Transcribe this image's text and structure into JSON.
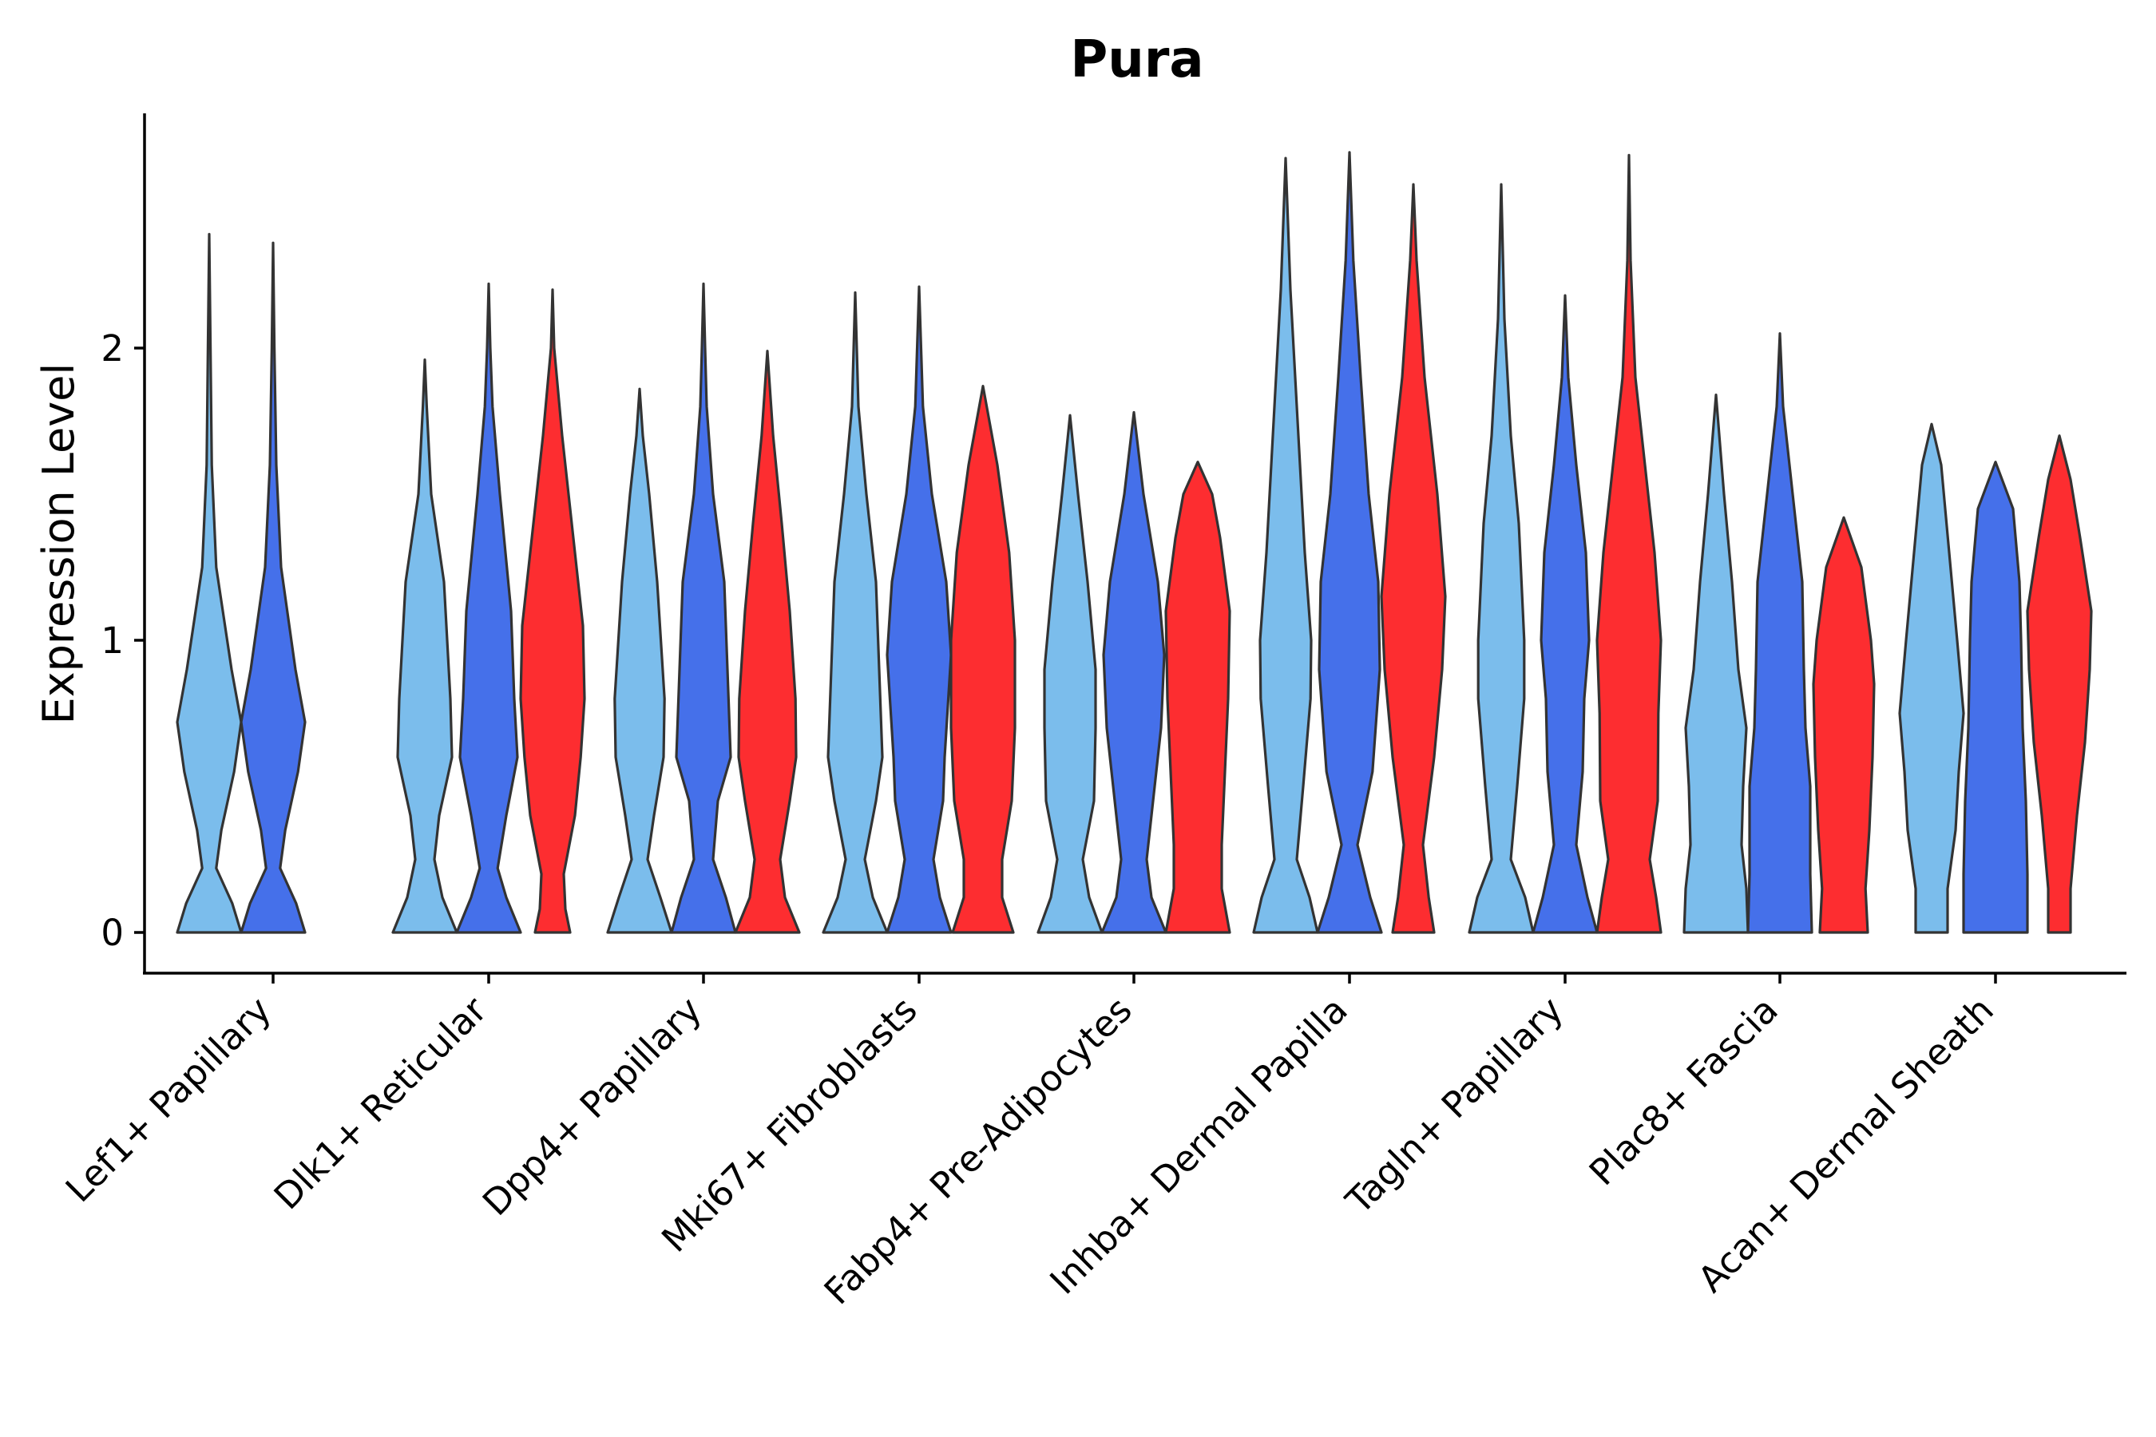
{
  "chart_data": {
    "type": "violin",
    "title": "Pura",
    "xlabel": "",
    "ylabel": "Expression Level",
    "ylim": [
      -0.13,
      2.82
    ],
    "yticks": [
      0,
      1,
      2
    ],
    "grid": false,
    "legend": "none",
    "group_colors": [
      "#7BBDEC",
      "#4570EA",
      "#FD2D30"
    ],
    "categories": [
      "Lef1+ Papillary",
      "Dlk1+ Reticular",
      "Dpp4+ Papillary",
      "Mki67+ Fibroblasts",
      "Fabp4+ Pre-Adipocytes",
      "Inhba+ Dermal Papilla",
      "Tagln+ Papillary",
      "Plac8+ Fascia",
      "Acan+ Dermal Sheath"
    ],
    "violins": [
      {
        "category": "Lef1+ Papillary",
        "group": 0,
        "max": 2.39,
        "profile": [
          [
            0,
            1.0
          ],
          [
            0.1,
            0.72
          ],
          [
            0.22,
            0.22
          ],
          [
            0.35,
            0.38
          ],
          [
            0.55,
            0.78
          ],
          [
            0.72,
            1.0
          ],
          [
            0.9,
            0.7
          ],
          [
            1.25,
            0.22
          ],
          [
            1.6,
            0.08
          ],
          [
            2.0,
            0.04
          ],
          [
            2.39,
            0.0
          ]
        ]
      },
      {
        "category": "Lef1+ Papillary",
        "group": 1,
        "max": 2.36,
        "profile": [
          [
            0,
            1.0
          ],
          [
            0.1,
            0.72
          ],
          [
            0.22,
            0.22
          ],
          [
            0.35,
            0.38
          ],
          [
            0.55,
            0.78
          ],
          [
            0.72,
            1.0
          ],
          [
            0.9,
            0.7
          ],
          [
            1.25,
            0.25
          ],
          [
            1.6,
            0.1
          ],
          [
            2.0,
            0.04
          ],
          [
            2.36,
            0.0
          ]
        ]
      },
      {
        "category": "Dlk1+ Reticular",
        "group": 0,
        "max": 1.96,
        "profile": [
          [
            0,
            1.0
          ],
          [
            0.12,
            0.55
          ],
          [
            0.25,
            0.3
          ],
          [
            0.4,
            0.45
          ],
          [
            0.6,
            0.85
          ],
          [
            0.8,
            0.8
          ],
          [
            1.2,
            0.6
          ],
          [
            1.5,
            0.2
          ],
          [
            1.8,
            0.06
          ],
          [
            1.96,
            0.0
          ]
        ]
      },
      {
        "category": "Dlk1+ Reticular",
        "group": 1,
        "max": 2.22,
        "profile": [
          [
            0,
            1.0
          ],
          [
            0.12,
            0.55
          ],
          [
            0.22,
            0.28
          ],
          [
            0.4,
            0.55
          ],
          [
            0.6,
            0.9
          ],
          [
            0.8,
            0.8
          ],
          [
            1.1,
            0.7
          ],
          [
            1.5,
            0.35
          ],
          [
            1.8,
            0.12
          ],
          [
            2.0,
            0.05
          ],
          [
            2.22,
            0.0
          ]
        ]
      },
      {
        "category": "Dlk1+ Reticular",
        "group": 2,
        "max": 2.2,
        "profile": [
          [
            0,
            0.55
          ],
          [
            0.08,
            0.4
          ],
          [
            0.2,
            0.35
          ],
          [
            0.4,
            0.7
          ],
          [
            0.6,
            0.88
          ],
          [
            0.8,
            1.0
          ],
          [
            1.05,
            0.95
          ],
          [
            1.35,
            0.65
          ],
          [
            1.7,
            0.3
          ],
          [
            2.0,
            0.05
          ],
          [
            2.2,
            0.0
          ]
        ]
      },
      {
        "category": "Dpp4+ Papillary",
        "group": 0,
        "max": 1.86,
        "profile": [
          [
            0,
            1.0
          ],
          [
            0.12,
            0.65
          ],
          [
            0.25,
            0.25
          ],
          [
            0.4,
            0.45
          ],
          [
            0.6,
            0.75
          ],
          [
            0.8,
            0.78
          ],
          [
            1.2,
            0.55
          ],
          [
            1.5,
            0.3
          ],
          [
            1.7,
            0.1
          ],
          [
            1.86,
            0.0
          ]
        ]
      },
      {
        "category": "Dpp4+ Papillary",
        "group": 1,
        "max": 2.22,
        "profile": [
          [
            0,
            1.0
          ],
          [
            0.12,
            0.7
          ],
          [
            0.25,
            0.3
          ],
          [
            0.45,
            0.45
          ],
          [
            0.6,
            0.85
          ],
          [
            0.9,
            0.75
          ],
          [
            1.2,
            0.65
          ],
          [
            1.5,
            0.3
          ],
          [
            1.8,
            0.1
          ],
          [
            2.0,
            0.05
          ],
          [
            2.22,
            0.0
          ]
        ]
      },
      {
        "category": "Dpp4+ Papillary",
        "group": 2,
        "max": 1.99,
        "profile": [
          [
            0,
            1.0
          ],
          [
            0.12,
            0.55
          ],
          [
            0.25,
            0.4
          ],
          [
            0.45,
            0.7
          ],
          [
            0.6,
            0.9
          ],
          [
            0.8,
            0.88
          ],
          [
            1.1,
            0.7
          ],
          [
            1.4,
            0.45
          ],
          [
            1.7,
            0.18
          ],
          [
            1.99,
            0.0
          ]
        ]
      },
      {
        "category": "Mki67+ Fibroblasts",
        "group": 0,
        "max": 2.19,
        "profile": [
          [
            0,
            1.0
          ],
          [
            0.12,
            0.55
          ],
          [
            0.25,
            0.3
          ],
          [
            0.45,
            0.65
          ],
          [
            0.6,
            0.85
          ],
          [
            0.9,
            0.75
          ],
          [
            1.2,
            0.65
          ],
          [
            1.5,
            0.35
          ],
          [
            1.8,
            0.1
          ],
          [
            2.19,
            0.0
          ]
        ]
      },
      {
        "category": "Mki67+ Fibroblasts",
        "group": 1,
        "max": 2.21,
        "profile": [
          [
            0,
            1.0
          ],
          [
            0.12,
            0.65
          ],
          [
            0.25,
            0.45
          ],
          [
            0.45,
            0.75
          ],
          [
            0.6,
            0.8
          ],
          [
            0.95,
            1.0
          ],
          [
            1.2,
            0.85
          ],
          [
            1.5,
            0.4
          ],
          [
            1.8,
            0.12
          ],
          [
            2.21,
            0.0
          ]
        ]
      },
      {
        "category": "Mki67+ Fibroblasts",
        "group": 2,
        "max": 1.87,
        "profile": [
          [
            0,
            0.95
          ],
          [
            0.12,
            0.6
          ],
          [
            0.25,
            0.6
          ],
          [
            0.45,
            0.9
          ],
          [
            0.7,
            1.0
          ],
          [
            1.0,
            1.0
          ],
          [
            1.3,
            0.82
          ],
          [
            1.6,
            0.45
          ],
          [
            1.87,
            0.0
          ]
        ]
      },
      {
        "category": "Fabp4+ Pre-Adipocytes",
        "group": 0,
        "max": 1.77,
        "profile": [
          [
            0,
            1.0
          ],
          [
            0.12,
            0.6
          ],
          [
            0.25,
            0.4
          ],
          [
            0.45,
            0.75
          ],
          [
            0.7,
            0.8
          ],
          [
            0.9,
            0.8
          ],
          [
            1.2,
            0.55
          ],
          [
            1.5,
            0.25
          ],
          [
            1.77,
            0.0
          ]
        ]
      },
      {
        "category": "Fabp4+ Pre-Adipocytes",
        "group": 1,
        "max": 1.78,
        "profile": [
          [
            0,
            1.0
          ],
          [
            0.12,
            0.55
          ],
          [
            0.25,
            0.4
          ],
          [
            0.45,
            0.6
          ],
          [
            0.7,
            0.85
          ],
          [
            0.95,
            0.95
          ],
          [
            1.2,
            0.75
          ],
          [
            1.5,
            0.3
          ],
          [
            1.78,
            0.0
          ]
        ]
      },
      {
        "category": "Fabp4+ Pre-Adipocytes",
        "group": 2,
        "max": 1.61,
        "profile": [
          [
            0,
            1.0
          ],
          [
            0.15,
            0.75
          ],
          [
            0.3,
            0.75
          ],
          [
            0.55,
            0.85
          ],
          [
            0.8,
            0.95
          ],
          [
            1.1,
            1.0
          ],
          [
            1.35,
            0.7
          ],
          [
            1.5,
            0.45
          ],
          [
            1.61,
            0.0
          ]
        ]
      },
      {
        "category": "Inhba+ Dermal Papilla",
        "group": 0,
        "max": 2.65,
        "profile": [
          [
            0,
            1.0
          ],
          [
            0.12,
            0.75
          ],
          [
            0.25,
            0.35
          ],
          [
            0.5,
            0.55
          ],
          [
            0.8,
            0.78
          ],
          [
            1.0,
            0.8
          ],
          [
            1.3,
            0.6
          ],
          [
            1.8,
            0.35
          ],
          [
            2.2,
            0.15
          ],
          [
            2.65,
            0.0
          ]
        ]
      },
      {
        "category": "Inhba+ Dermal Papilla",
        "group": 1,
        "max": 2.67,
        "profile": [
          [
            0,
            1.0
          ],
          [
            0.12,
            0.65
          ],
          [
            0.3,
            0.25
          ],
          [
            0.55,
            0.72
          ],
          [
            0.9,
            0.95
          ],
          [
            1.2,
            0.9
          ],
          [
            1.5,
            0.6
          ],
          [
            1.9,
            0.35
          ],
          [
            2.3,
            0.12
          ],
          [
            2.67,
            0.0
          ]
        ]
      },
      {
        "category": "Inhba+ Dermal Papilla",
        "group": 2,
        "max": 2.56,
        "profile": [
          [
            0,
            0.65
          ],
          [
            0.12,
            0.48
          ],
          [
            0.3,
            0.3
          ],
          [
            0.6,
            0.65
          ],
          [
            0.9,
            0.9
          ],
          [
            1.15,
            1.0
          ],
          [
            1.5,
            0.75
          ],
          [
            1.9,
            0.35
          ],
          [
            2.3,
            0.1
          ],
          [
            2.56,
            0.0
          ]
        ]
      },
      {
        "category": "Tagln+ Papillary",
        "group": 0,
        "max": 2.56,
        "profile": [
          [
            0,
            1.0
          ],
          [
            0.12,
            0.75
          ],
          [
            0.25,
            0.3
          ],
          [
            0.5,
            0.5
          ],
          [
            0.8,
            0.72
          ],
          [
            1.0,
            0.72
          ],
          [
            1.4,
            0.55
          ],
          [
            1.7,
            0.3
          ],
          [
            2.1,
            0.1
          ],
          [
            2.56,
            0.0
          ]
        ]
      },
      {
        "category": "Tagln+ Papillary",
        "group": 1,
        "max": 2.18,
        "profile": [
          [
            0,
            1.0
          ],
          [
            0.12,
            0.7
          ],
          [
            0.3,
            0.35
          ],
          [
            0.55,
            0.55
          ],
          [
            0.8,
            0.6
          ],
          [
            1.0,
            0.75
          ],
          [
            1.3,
            0.65
          ],
          [
            1.6,
            0.35
          ],
          [
            1.9,
            0.1
          ],
          [
            2.18,
            0.0
          ]
        ]
      },
      {
        "category": "Tagln+ Papillary",
        "group": 2,
        "max": 2.66,
        "profile": [
          [
            0,
            1.0
          ],
          [
            0.12,
            0.85
          ],
          [
            0.25,
            0.65
          ],
          [
            0.45,
            0.9
          ],
          [
            0.75,
            0.92
          ],
          [
            1.0,
            1.0
          ],
          [
            1.3,
            0.8
          ],
          [
            1.6,
            0.5
          ],
          [
            1.9,
            0.2
          ],
          [
            2.3,
            0.05
          ],
          [
            2.66,
            0.0
          ]
        ]
      },
      {
        "category": "Plac8+ Fascia",
        "group": 0,
        "max": 1.84,
        "profile": [
          [
            0,
            1.0
          ],
          [
            0.15,
            0.95
          ],
          [
            0.3,
            0.8
          ],
          [
            0.5,
            0.85
          ],
          [
            0.7,
            0.95
          ],
          [
            0.9,
            0.7
          ],
          [
            1.2,
            0.5
          ],
          [
            1.5,
            0.25
          ],
          [
            1.84,
            0.0
          ]
        ]
      },
      {
        "category": "Plac8+ Fascia",
        "group": 1,
        "max": 2.05,
        "profile": [
          [
            0,
            1.0
          ],
          [
            0.2,
            0.95
          ],
          [
            0.5,
            0.95
          ],
          [
            0.7,
            0.8
          ],
          [
            0.9,
            0.75
          ],
          [
            1.2,
            0.7
          ],
          [
            1.5,
            0.4
          ],
          [
            1.8,
            0.1
          ],
          [
            2.05,
            0.0
          ]
        ]
      },
      {
        "category": "Plac8+ Fascia",
        "group": 2,
        "max": 1.42,
        "profile": [
          [
            0,
            0.75
          ],
          [
            0.15,
            0.68
          ],
          [
            0.35,
            0.8
          ],
          [
            0.6,
            0.9
          ],
          [
            0.85,
            0.95
          ],
          [
            1.0,
            0.85
          ],
          [
            1.25,
            0.55
          ],
          [
            1.42,
            0.0
          ]
        ]
      },
      {
        "category": "Acan+ Dermal Sheath",
        "group": 0,
        "max": 1.74,
        "profile": [
          [
            0,
            0.5
          ],
          [
            0.15,
            0.5
          ],
          [
            0.35,
            0.75
          ],
          [
            0.55,
            0.85
          ],
          [
            0.75,
            1.0
          ],
          [
            1.0,
            0.8
          ],
          [
            1.3,
            0.55
          ],
          [
            1.6,
            0.3
          ],
          [
            1.74,
            0.0
          ]
        ]
      },
      {
        "category": "Acan+ Dermal Sheath",
        "group": 1,
        "max": 1.61,
        "profile": [
          [
            0,
            1.0
          ],
          [
            0.2,
            1.0
          ],
          [
            0.45,
            0.95
          ],
          [
            0.7,
            0.85
          ],
          [
            1.0,
            0.8
          ],
          [
            1.2,
            0.75
          ],
          [
            1.45,
            0.55
          ],
          [
            1.61,
            0.0
          ]
        ]
      },
      {
        "category": "Acan+ Dermal Sheath",
        "group": 2,
        "max": 1.7,
        "profile": [
          [
            0,
            0.35
          ],
          [
            0.15,
            0.35
          ],
          [
            0.4,
            0.55
          ],
          [
            0.65,
            0.8
          ],
          [
            0.9,
            0.95
          ],
          [
            1.1,
            1.0
          ],
          [
            1.35,
            0.65
          ],
          [
            1.55,
            0.35
          ],
          [
            1.7,
            0.0
          ]
        ]
      }
    ]
  }
}
